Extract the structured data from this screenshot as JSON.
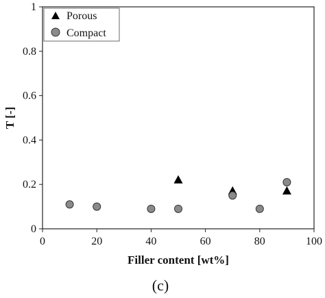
{
  "chart_data": {
    "type": "scatter",
    "title": "",
    "xlabel": "Filler content [wt%]",
    "ylabel": "T [-]",
    "xlim": [
      0,
      100
    ],
    "ylim": [
      0,
      1
    ],
    "x_ticks": [
      "0",
      "20",
      "40",
      "60",
      "80",
      "100"
    ],
    "y_ticks": [
      "0",
      "0.2",
      "0.4",
      "0.6",
      "0.8",
      "1"
    ],
    "grid": false,
    "legend_position": "top-left",
    "series": [
      {
        "name": "Porous",
        "marker": "triangle",
        "color": "#000000",
        "points": [
          {
            "x": 50,
            "y": 0.22
          },
          {
            "x": 70,
            "y": 0.17
          },
          {
            "x": 90,
            "y": 0.17
          }
        ]
      },
      {
        "name": "Compact",
        "marker": "circle",
        "color": "#8a8a8a",
        "points": [
          {
            "x": 10,
            "y": 0.11
          },
          {
            "x": 20,
            "y": 0.1
          },
          {
            "x": 40,
            "y": 0.09
          },
          {
            "x": 50,
            "y": 0.09
          },
          {
            "x": 70,
            "y": 0.15
          },
          {
            "x": 80,
            "y": 0.09
          },
          {
            "x": 90,
            "y": 0.21
          }
        ]
      }
    ]
  },
  "panel_label": "(c)"
}
